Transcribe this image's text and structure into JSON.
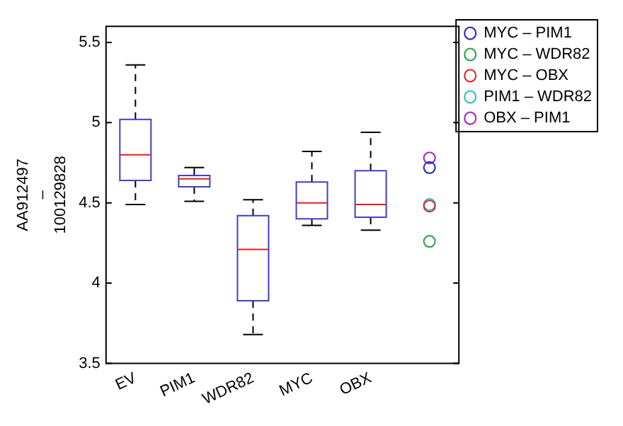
{
  "chart_data": {
    "type": "box",
    "ylabel": "AA912497 – 100129828",
    "categories": [
      "EV",
      "PIM1",
      "WDR82",
      "MYC",
      "OBX",
      null
    ],
    "ylim": [
      3.5,
      5.6
    ],
    "yticks": [
      3.5,
      4,
      4.5,
      5,
      5.5
    ],
    "grid": false,
    "legend": "top right",
    "marker": "circle",
    "series": [
      {
        "type": "box",
        "color": "#4040c0",
        "boxes": [
          {
            "low": 4.49,
            "q1": 4.64,
            "median": 4.8,
            "q3": 5.02,
            "high": 5.36
          },
          {
            "low": 4.51,
            "q1": 4.6,
            "median": 4.65,
            "q3": 4.67,
            "high": 4.72
          },
          {
            "low": 3.68,
            "q1": 3.89,
            "median": 4.21,
            "q3": 4.42,
            "high": 4.52
          },
          {
            "low": 4.36,
            "q1": 4.4,
            "median": 4.5,
            "q3": 4.63,
            "high": 4.82
          },
          {
            "low": 4.33,
            "q1": 4.41,
            "median": 4.49,
            "q3": 4.7,
            "high": 4.94
          },
          null
        ]
      },
      {
        "type": "scatter",
        "name": "MYC – PIM1",
        "color": "#2020c0",
        "values": [
          null,
          null,
          null,
          null,
          null,
          4.72
        ]
      },
      {
        "type": "scatter",
        "name": "MYC – WDR82",
        "color": "#20a040",
        "values": [
          null,
          null,
          null,
          null,
          null,
          4.26
        ]
      },
      {
        "type": "scatter",
        "name": "MYC – OBX",
        "color": "#e02020",
        "values": [
          null,
          null,
          null,
          null,
          null,
          4.48
        ]
      },
      {
        "type": "scatter",
        "name": "PIM1 – WDR82",
        "color": "#20c0c0",
        "values": [
          null,
          null,
          null,
          null,
          null,
          4.49
        ]
      },
      {
        "type": "scatter",
        "name": "OBX – PIM1",
        "color": "#a020c0",
        "values": [
          null,
          null,
          null,
          null,
          null,
          4.78
        ]
      }
    ]
  }
}
